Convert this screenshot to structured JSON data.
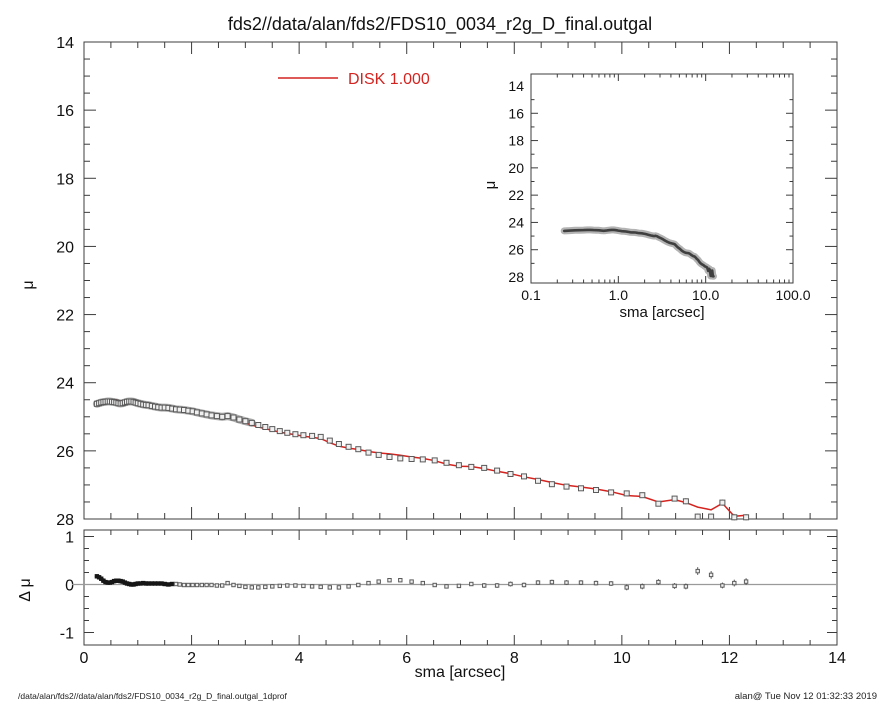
{
  "title": "fds2//data/alan/fds2/FDS10_0034_r2g_D_final.outgal",
  "legend": {
    "label": "DISK  1.000"
  },
  "footer_left": "/data/alan/fds2//data/alan/fds2/FDS10_0034_r2g_D_final.outgal_1dprof",
  "footer_right": "alan@  Tue Nov 12 01:32:33 2019",
  "colors": {
    "model_line": "#d42420",
    "data_square_stroke": "#5a5a5a",
    "data_square_fill": "#f0f0f0",
    "band": "#9f9f9f",
    "axis": "#3c3c3c",
    "zero_line": "#9a9a9a",
    "inset_halo": "#b3b3b3",
    "inset_core": "#3f3f3f",
    "residual_dense": "#161616"
  },
  "chart_data": {
    "type": "line",
    "title": "fds2//data/alan/fds2/FDS10_0034_r2g_D_final.outgal",
    "panels": [
      {
        "id": "main",
        "type": "line+scatter",
        "ylabel": "μ",
        "xlim": [
          0,
          14
        ],
        "ylim": [
          28,
          14
        ],
        "xticks": [
          0,
          2,
          4,
          6,
          8,
          10,
          12,
          14
        ],
        "yticks": [
          14,
          16,
          18,
          20,
          22,
          24,
          26,
          28
        ],
        "grid": false,
        "legend_position": "top-inside-left",
        "series": [
          {
            "name": "data",
            "style": "open-squares",
            "x_key": "sma",
            "y_key": "mu_data"
          },
          {
            "name": "DISK  1.000",
            "style": "line",
            "x_key": "sma",
            "y_key": "mu_model"
          }
        ]
      },
      {
        "id": "inset",
        "type": "line",
        "xscale": "log",
        "xlabel": "sma [arcsec]",
        "ylabel": "μ",
        "xlim": [
          0.1,
          100
        ],
        "ylim": [
          28,
          14
        ],
        "xtick_labels": [
          "0.1",
          "1.0",
          "10.0",
          "100.0"
        ],
        "yticks": [
          14,
          16,
          18,
          20,
          22,
          24,
          26,
          28
        ],
        "grid": false,
        "series": [
          {
            "name": "data",
            "style": "thick-gray-line",
            "x_key": "sma",
            "y_key": "mu_data"
          }
        ]
      },
      {
        "id": "residual",
        "type": "scatter",
        "xlabel": "sma [arcsec]",
        "ylabel": "Δ μ",
        "xlim": [
          0,
          14
        ],
        "ylim": [
          -1,
          1
        ],
        "xticks": [
          0,
          2,
          4,
          6,
          8,
          10,
          12,
          14
        ],
        "yticks": [
          1,
          0,
          -1
        ],
        "zero_line": true,
        "grid": false,
        "series": [
          {
            "name": "delta",
            "style": "small-squares-errorbars",
            "x_key": "sma",
            "y_key": "delta_mu",
            "err_key": "delta_err"
          }
        ]
      }
    ],
    "profile": {
      "sma": [
        0.24,
        0.28,
        0.32,
        0.36,
        0.4,
        0.44,
        0.48,
        0.52,
        0.56,
        0.6,
        0.64,
        0.68,
        0.72,
        0.76,
        0.8,
        0.84,
        0.88,
        0.92,
        0.96,
        1.0,
        1.05,
        1.1,
        1.15,
        1.2,
        1.26,
        1.32,
        1.38,
        1.44,
        1.5,
        1.57,
        1.64,
        1.71,
        1.78,
        1.86,
        1.94,
        2.02,
        2.1,
        2.19,
        2.28,
        2.37,
        2.47,
        2.57,
        2.67,
        2.78,
        2.89,
        3.0,
        3.12,
        3.24,
        3.37,
        3.5,
        3.64,
        3.78,
        3.93,
        4.08,
        4.24,
        4.4,
        4.57,
        4.74,
        4.92,
        5.1,
        5.29,
        5.48,
        5.68,
        5.88,
        6.09,
        6.3,
        6.52,
        6.74,
        6.97,
        7.2,
        7.44,
        7.68,
        7.93,
        8.18,
        8.44,
        8.7,
        8.97,
        9.24,
        9.52,
        9.8,
        10.09,
        10.38,
        10.68,
        10.98,
        11.19,
        11.41,
        11.66,
        11.87,
        12.09,
        12.31
      ],
      "mu_data": [
        24.62,
        24.6,
        24.58,
        24.57,
        24.56,
        24.55,
        24.55,
        24.56,
        24.57,
        24.58,
        24.6,
        24.61,
        24.6,
        24.58,
        24.56,
        24.55,
        24.55,
        24.56,
        24.58,
        24.6,
        24.62,
        24.64,
        24.65,
        24.66,
        24.68,
        24.7,
        24.72,
        24.73,
        24.73,
        24.74,
        24.76,
        24.78,
        24.79,
        24.8,
        24.82,
        24.84,
        24.87,
        24.9,
        24.93,
        24.96,
        24.98,
        25.0,
        24.98,
        25.02,
        25.08,
        25.13,
        25.18,
        25.24,
        25.3,
        25.36,
        25.42,
        25.47,
        25.51,
        25.54,
        25.56,
        25.59,
        25.7,
        25.8,
        25.88,
        25.95,
        26.05,
        26.12,
        26.18,
        26.22,
        26.24,
        26.25,
        26.28,
        26.35,
        26.42,
        26.47,
        26.5,
        26.58,
        26.68,
        26.75,
        26.88,
        26.98,
        27.05,
        27.1,
        27.15,
        27.22,
        27.25,
        27.3,
        27.55,
        27.4,
        27.48,
        27.93,
        27.93,
        27.52,
        27.95,
        27.95
      ],
      "mu_model": [
        null,
        null,
        null,
        null,
        24.51,
        24.51,
        24.51,
        24.51,
        24.5,
        24.5,
        24.52,
        24.54,
        24.54,
        24.54,
        24.54,
        24.54,
        24.55,
        24.56,
        24.57,
        24.58,
        24.6,
        24.61,
        24.63,
        24.64,
        24.66,
        24.68,
        24.7,
        24.71,
        24.72,
        24.74,
        24.75,
        24.77,
        24.79,
        24.81,
        24.83,
        24.85,
        24.88,
        24.91,
        24.94,
        24.97,
        25.0,
        25.02,
        24.95,
        25.03,
        25.11,
        25.18,
        25.24,
        25.3,
        25.35,
        25.4,
        25.45,
        25.49,
        25.53,
        25.57,
        25.6,
        25.64,
        25.76,
        25.86,
        25.92,
        25.96,
        26.02,
        26.06,
        26.09,
        26.13,
        26.18,
        26.22,
        26.29,
        26.39,
        26.45,
        26.46,
        26.52,
        26.6,
        26.67,
        26.76,
        26.84,
        26.93,
        27.01,
        27.06,
        27.12,
        27.2,
        27.31,
        27.34,
        27.5,
        27.43,
        27.52,
        27.65,
        27.73,
        27.54,
        27.92,
        27.89
      ],
      "delta_mu": [
        0.17,
        0.15,
        0.12,
        0.08,
        0.05,
        0.04,
        0.04,
        0.05,
        0.07,
        0.08,
        0.08,
        0.07,
        0.06,
        0.04,
        0.02,
        0.01,
        0.0,
        0.0,
        0.01,
        0.02,
        0.02,
        0.03,
        0.02,
        0.02,
        0.02,
        0.02,
        0.02,
        0.02,
        0.01,
        0.0,
        0.01,
        0.01,
        0.0,
        -0.01,
        -0.01,
        -0.01,
        -0.01,
        -0.01,
        -0.01,
        -0.01,
        -0.02,
        -0.02,
        0.03,
        -0.01,
        -0.03,
        -0.05,
        -0.06,
        -0.06,
        -0.05,
        -0.04,
        -0.03,
        -0.02,
        -0.02,
        -0.03,
        -0.04,
        -0.05,
        -0.06,
        -0.06,
        -0.04,
        -0.01,
        0.03,
        0.06,
        0.09,
        0.09,
        0.06,
        0.03,
        -0.01,
        -0.04,
        -0.03,
        0.01,
        -0.02,
        -0.02,
        0.01,
        -0.01,
        0.04,
        0.05,
        0.04,
        0.04,
        0.03,
        0.02,
        -0.06,
        -0.04,
        0.05,
        -0.03,
        -0.04,
        0.28,
        0.2,
        -0.02,
        0.03,
        0.06
      ],
      "delta_err": [
        0,
        0,
        0,
        0,
        0,
        0,
        0,
        0,
        0,
        0,
        0,
        0,
        0,
        0,
        0,
        0,
        0,
        0,
        0,
        0,
        0,
        0,
        0,
        0,
        0,
        0,
        0,
        0,
        0,
        0,
        0,
        0,
        0,
        0,
        0,
        0,
        0,
        0,
        0,
        0,
        0,
        0,
        0,
        0,
        0,
        0,
        0,
        0,
        0,
        0,
        0,
        0,
        0,
        0,
        0,
        0,
        0,
        0,
        0,
        0,
        0,
        0,
        0,
        0,
        0,
        0,
        0,
        0,
        0,
        0,
        0.03,
        0.03,
        0.03,
        0.03,
        0.03,
        0.03,
        0.03,
        0.03,
        0.03,
        0.03,
        0.04,
        0.04,
        0.04,
        0.04,
        0.04,
        0.06,
        0.06,
        0.04,
        0.05,
        0.05
      ]
    },
    "xlabel": "sma [arcsec]",
    "legend_entries": [
      "DISK  1.000"
    ]
  }
}
